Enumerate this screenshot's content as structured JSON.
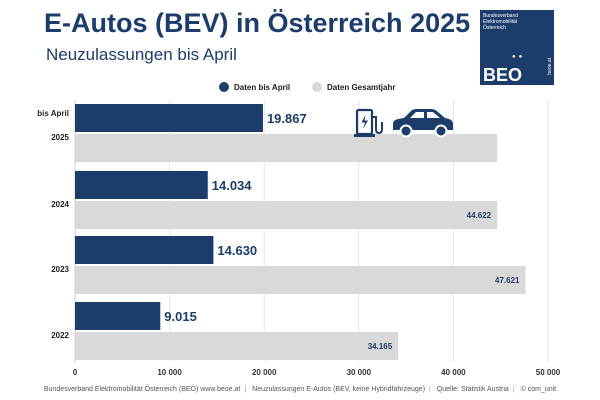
{
  "header": {
    "title": "E-Autos (BEV) in Österreich 2025",
    "subtitle": "Neuzulassungen bis April"
  },
  "logo": {
    "org_lines": [
      "Bundesverband",
      "Elektromobilität",
      "Österreich"
    ],
    "abbr": "BEO",
    "url": "beoe.at"
  },
  "footer": {
    "org": "Bundesverband Elektromobilität Österreich (BEÖ) www.beoe.at",
    "description": "Neuzulassungen E-Autos (BEV, keine Hybridfahrzeuge)",
    "source": "Quelle: Statistik Austria",
    "credit": "© com_unit"
  },
  "colors": {
    "primary": "#1c3c6c",
    "secondary": "#d9d9d9",
    "text": "#1c3c6c",
    "axis_text": "#333333"
  },
  "icons": [
    "charging-station-icon",
    "electric-car-icon"
  ],
  "chart_data": {
    "type": "bar",
    "orientation": "horizontal",
    "categories": [
      "2025",
      "2024",
      "2023",
      "2022"
    ],
    "category_annotations": {
      "2025": "bis April"
    },
    "series": [
      {
        "name": "Daten bis April",
        "values": [
          19867,
          14034,
          14630,
          9015
        ],
        "labels": [
          "19.867",
          "14.034",
          "14.630",
          "9.015"
        ]
      },
      {
        "name": "Daten Gesamtjahr",
        "values": [
          44622,
          44622,
          47621,
          34165
        ],
        "labels": [
          null,
          "44.622",
          "47.621",
          "34.165"
        ]
      }
    ],
    "xlim": [
      0,
      50000
    ],
    "xticks": [
      0,
      10000,
      20000,
      30000,
      40000,
      50000
    ],
    "xtick_labels": [
      "0",
      "10 000",
      "20 000",
      "30 000",
      "40 000",
      "50 000"
    ],
    "grid": "vertical",
    "legend": "top"
  }
}
